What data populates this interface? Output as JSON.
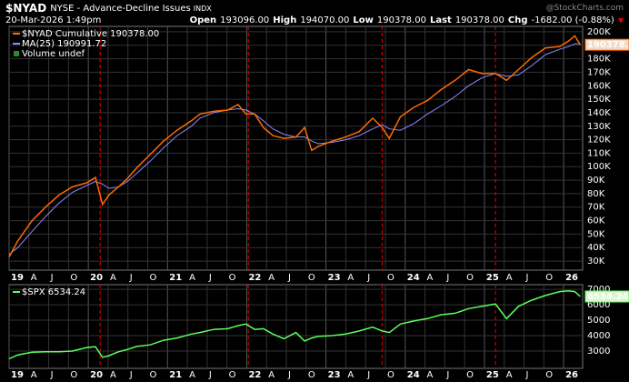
{
  "header": {
    "symbol": "$NYAD",
    "name": "NYSE - Advance-Decline Issues",
    "exchange": "INDX",
    "brand": "@StockCharts.com",
    "date": "20-Mar-2026 1:49pm",
    "quote": [
      {
        "label": "Open",
        "value": "193096.00"
      },
      {
        "label": "High",
        "value": "194070.00"
      },
      {
        "label": "Low",
        "value": "190378.00"
      },
      {
        "label": "Last",
        "value": "190378.00"
      },
      {
        "label": "Chg",
        "value": "-1682.00 (-0.88%)"
      }
    ]
  },
  "chart_data": [
    {
      "type": "line",
      "legend_note": "Volume undef",
      "last_label": "190378.0",
      "x": [
        2019.0,
        2019.11,
        2019.29,
        2019.46,
        2019.63,
        2019.8,
        2019.98,
        2020.09,
        2020.18,
        2020.26,
        2020.38,
        2020.49,
        2020.61,
        2020.78,
        2020.95,
        2021.12,
        2021.3,
        2021.41,
        2021.58,
        2021.76,
        2021.89,
        2021.99,
        2022.1,
        2022.21,
        2022.33,
        2022.47,
        2022.62,
        2022.73,
        2022.82,
        2022.9,
        2023.08,
        2023.25,
        2023.42,
        2023.59,
        2023.71,
        2023.8,
        2023.94,
        2024.11,
        2024.28,
        2024.45,
        2024.63,
        2024.8,
        2024.97,
        2025.14,
        2025.28,
        2025.43,
        2025.6,
        2025.77,
        2025.95,
        2026.06,
        2026.14,
        2026.21
      ],
      "series": [
        {
          "name": "$NYAD Cumulative 190378.00",
          "color": "#ff6a00",
          "values": [
            33000,
            45000,
            60000,
            70000,
            79000,
            85000,
            88000,
            92000,
            72000,
            79000,
            85000,
            91000,
            99000,
            109000,
            119000,
            127000,
            134000,
            139000,
            141000,
            142000,
            146000,
            139000,
            139000,
            129000,
            123000,
            121000,
            122000,
            129000,
            112000,
            115000,
            119000,
            122000,
            126000,
            136000,
            129000,
            121000,
            137000,
            144000,
            149000,
            157000,
            164000,
            172000,
            169000,
            169000,
            164000,
            172000,
            181000,
            188000,
            189000,
            193000,
            197000,
            190378
          ]
        },
        {
          "name": "MA(25) 190991.72",
          "color": "#8a8aff",
          "values": [
            35000,
            40000,
            52000,
            63000,
            73000,
            81000,
            86000,
            89000,
            87000,
            84000,
            85000,
            89000,
            95000,
            104000,
            114000,
            123000,
            130000,
            136000,
            140000,
            142000,
            143000,
            142000,
            139000,
            134000,
            128000,
            124000,
            122000,
            122000,
            119000,
            117000,
            118000,
            120000,
            123000,
            128000,
            131000,
            128000,
            127000,
            132000,
            139000,
            145000,
            152000,
            160000,
            166000,
            169000,
            167000,
            168000,
            175000,
            183000,
            187000,
            189000,
            191000,
            190991.72
          ]
        }
      ],
      "xlim": [
        2019.0,
        2026.24
      ],
      "ylim": [
        23300,
        204000
      ],
      "xticks": [
        {
          "value": 2019,
          "label": "19"
        },
        {
          "value": 2019.25,
          "label": "A"
        },
        {
          "value": 2019.5,
          "label": "J"
        },
        {
          "value": 2019.75,
          "label": "O"
        },
        {
          "value": 2020,
          "label": "20"
        },
        {
          "value": 2020.25,
          "label": "A"
        },
        {
          "value": 2020.5,
          "label": "J"
        },
        {
          "value": 2020.75,
          "label": "O"
        },
        {
          "value": 2021,
          "label": "21"
        },
        {
          "value": 2021.25,
          "label": "A"
        },
        {
          "value": 2021.5,
          "label": "J"
        },
        {
          "value": 2021.75,
          "label": "O"
        },
        {
          "value": 2022,
          "label": "22"
        },
        {
          "value": 2022.25,
          "label": "A"
        },
        {
          "value": 2022.5,
          "label": "J"
        },
        {
          "value": 2022.75,
          "label": "O"
        },
        {
          "value": 2023,
          "label": "23"
        },
        {
          "value": 2023.25,
          "label": "A"
        },
        {
          "value": 2023.5,
          "label": "J"
        },
        {
          "value": 2023.75,
          "label": "O"
        },
        {
          "value": 2024,
          "label": "24"
        },
        {
          "value": 2024.25,
          "label": "A"
        },
        {
          "value": 2024.5,
          "label": "J"
        },
        {
          "value": 2024.75,
          "label": "O"
        },
        {
          "value": 2025,
          "label": "25"
        },
        {
          "value": 2025.25,
          "label": "A"
        },
        {
          "value": 2025.5,
          "label": "J"
        },
        {
          "value": 2025.75,
          "label": "O"
        },
        {
          "value": 2026,
          "label": "26"
        }
      ],
      "yticks": [
        {
          "value": 30000,
          "label": "30K"
        },
        {
          "value": 40000,
          "label": "40K"
        },
        {
          "value": 50000,
          "label": "50K"
        },
        {
          "value": 60000,
          "label": "60K"
        },
        {
          "value": 70000,
          "label": "70K"
        },
        {
          "value": 80000,
          "label": "80K"
        },
        {
          "value": 90000,
          "label": "90K"
        },
        {
          "value": 100000,
          "label": "100K"
        },
        {
          "value": 110000,
          "label": "110K"
        },
        {
          "value": 120000,
          "label": "120K"
        },
        {
          "value": 130000,
          "label": "130K"
        },
        {
          "value": 140000,
          "label": "140K"
        },
        {
          "value": 150000,
          "label": "150K"
        },
        {
          "value": 160000,
          "label": "160K"
        },
        {
          "value": 170000,
          "label": "170K"
        },
        {
          "value": 180000,
          "label": "180K"
        },
        {
          "value": 190000,
          "label": "190K"
        },
        {
          "value": 200000,
          "label": "200K"
        }
      ],
      "vlines": {
        "color": "#cc0000",
        "x": [
          2020.15,
          2022.02,
          2023.71,
          2025.14
        ]
      },
      "grid": true
    },
    {
      "type": "line",
      "last_label": "6534.24",
      "x": [
        2019.0,
        2019.11,
        2019.29,
        2019.46,
        2019.63,
        2019.8,
        2019.98,
        2020.09,
        2020.18,
        2020.26,
        2020.38,
        2020.49,
        2020.61,
        2020.78,
        2020.95,
        2021.12,
        2021.3,
        2021.41,
        2021.58,
        2021.76,
        2021.89,
        2021.99,
        2022.1,
        2022.21,
        2022.33,
        2022.47,
        2022.62,
        2022.73,
        2022.82,
        2022.9,
        2023.08,
        2023.25,
        2023.42,
        2023.59,
        2023.71,
        2023.8,
        2023.94,
        2024.11,
        2024.28,
        2024.45,
        2024.63,
        2024.8,
        2024.97,
        2025.14,
        2025.28,
        2025.43,
        2025.6,
        2025.77,
        2025.95,
        2026.06,
        2026.14,
        2026.21
      ],
      "series": [
        {
          "name": "$SPX 6534.24",
          "color": "#5cff5c",
          "values": [
            2500,
            2750,
            2920,
            2950,
            2950,
            3000,
            3230,
            3280,
            2600,
            2700,
            2950,
            3100,
            3300,
            3400,
            3700,
            3850,
            4100,
            4200,
            4400,
            4450,
            4650,
            4750,
            4400,
            4450,
            4100,
            3800,
            4200,
            3650,
            3850,
            3950,
            4000,
            4100,
            4300,
            4550,
            4300,
            4200,
            4750,
            4950,
            5100,
            5350,
            5450,
            5750,
            5900,
            6050,
            5100,
            5900,
            6300,
            6600,
            6850,
            6900,
            6850,
            6534.24
          ]
        }
      ],
      "xlim": [
        2019.0,
        2026.24
      ],
      "ylim": [
        1880,
        7300
      ],
      "xticks": [
        {
          "value": 2019,
          "label": "19"
        },
        {
          "value": 2019.25,
          "label": "A"
        },
        {
          "value": 2019.5,
          "label": "J"
        },
        {
          "value": 2019.75,
          "label": "O"
        },
        {
          "value": 2020,
          "label": "20"
        },
        {
          "value": 2020.25,
          "label": "A"
        },
        {
          "value": 2020.5,
          "label": "J"
        },
        {
          "value": 2020.75,
          "label": "O"
        },
        {
          "value": 2021,
          "label": "21"
        },
        {
          "value": 2021.25,
          "label": "A"
        },
        {
          "value": 2021.5,
          "label": "J"
        },
        {
          "value": 2021.75,
          "label": "O"
        },
        {
          "value": 2022,
          "label": "22"
        },
        {
          "value": 2022.25,
          "label": "A"
        },
        {
          "value": 2022.5,
          "label": "J"
        },
        {
          "value": 2022.75,
          "label": "O"
        },
        {
          "value": 2023,
          "label": "23"
        },
        {
          "value": 2023.25,
          "label": "A"
        },
        {
          "value": 2023.5,
          "label": "J"
        },
        {
          "value": 2023.75,
          "label": "O"
        },
        {
          "value": 2024,
          "label": "24"
        },
        {
          "value": 2024.25,
          "label": "A"
        },
        {
          "value": 2024.5,
          "label": "J"
        },
        {
          "value": 2024.75,
          "label": "O"
        },
        {
          "value": 2025,
          "label": "25"
        },
        {
          "value": 2025.25,
          "label": "A"
        },
        {
          "value": 2025.5,
          "label": "J"
        },
        {
          "value": 2025.75,
          "label": "O"
        },
        {
          "value": 2026,
          "label": "26"
        }
      ],
      "yticks": [
        3000,
        4000,
        5000,
        6000,
        7000
      ],
      "vlines": {
        "color": "#cc0000",
        "x": [
          2020.15,
          2022.02,
          2023.71,
          2025.14
        ]
      },
      "grid": true
    }
  ]
}
